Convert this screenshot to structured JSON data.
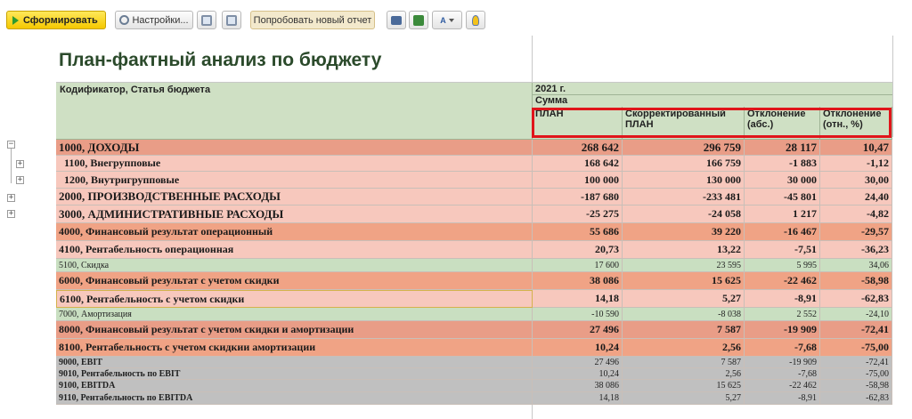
{
  "toolbar": {
    "run_label": "Сформировать",
    "settings_label": "Настройки...",
    "try_new_label": "Попробовать новый отчет",
    "font_button_text": "A"
  },
  "report": {
    "title": "План-фактный анализ по бюджету",
    "header": {
      "row_label": "Кодификатор, Статья бюджета",
      "period": "2021 г.",
      "measure": "Сумма",
      "columns": [
        "ПЛАН",
        "Скорректированный ПЛАН",
        "Отклонение (абс.)",
        "Отклонение (отн., %)"
      ]
    },
    "rows": [
      {
        "name": "1000, ДОХОДЫ",
        "values": [
          "268 642",
          "296 759",
          "28 117",
          "10,47"
        ]
      },
      {
        "name": "1100, Внегрупповые",
        "values": [
          "168 642",
          "166 759",
          "-1 883",
          "-1,12"
        ]
      },
      {
        "name": "1200, Внутригрупповые",
        "values": [
          "100 000",
          "130 000",
          "30 000",
          "30,00"
        ]
      },
      {
        "name": "2000, ПРОИЗВОДСТВЕННЫЕ РАСХОДЫ",
        "values": [
          "-187 680",
          "-233 481",
          "-45 801",
          "24,40"
        ]
      },
      {
        "name": "3000, АДМИНИСТРАТИВНЫЕ РАСХОДЫ",
        "values": [
          "-25 275",
          "-24 058",
          "1 217",
          "-4,82"
        ]
      },
      {
        "name": "4000, Финансовый результат операционный",
        "values": [
          "55 686",
          "39 220",
          "-16 467",
          "-29,57"
        ]
      },
      {
        "name": "4100, Рентабельность операционная",
        "values": [
          "20,73",
          "13,22",
          "-7,51",
          "-36,23"
        ]
      },
      {
        "name": "5100, Скидка",
        "values": [
          "17 600",
          "23 595",
          "5 995",
          "34,06"
        ]
      },
      {
        "name": "6000, Финансовый результат с учетом скидки",
        "values": [
          "38 086",
          "15 625",
          "-22 462",
          "-58,98"
        ]
      },
      {
        "name": "6100, Рентабельность с учетом скидки",
        "values": [
          "14,18",
          "5,27",
          "-8,91",
          "-62,83"
        ]
      },
      {
        "name": "7000, Амортизация",
        "values": [
          "-10 590",
          "-8 038",
          "2 552",
          "-24,10"
        ]
      },
      {
        "name": "8000, Финансовый результат с учетом скидки и амортизации",
        "values": [
          "27 496",
          "7 587",
          "-19 909",
          "-72,41"
        ]
      },
      {
        "name": "8100, Рентабельность с учетом скидкии амортизации",
        "values": [
          "10,24",
          "2,56",
          "-7,68",
          "-75,00"
        ]
      },
      {
        "name": "9000, EBIT",
        "values": [
          "27 496",
          "7 587",
          "-19 909",
          "-72,41"
        ]
      },
      {
        "name": "9010, Рентабельность по EBIT",
        "values": [
          "10,24",
          "2,56",
          "-7,68",
          "-75,00"
        ]
      },
      {
        "name": "9100, EBITDA",
        "values": [
          "38 086",
          "15 625",
          "-22 462",
          "-58,98"
        ]
      },
      {
        "name": "9110, Рентабельность по EBITDA",
        "values": [
          "14,18",
          "5,27",
          "-8,91",
          "-62,83"
        ]
      }
    ]
  },
  "tree": {
    "collapse_symbol": "−",
    "expand_symbol": "+"
  },
  "colors": {
    "header_bg": "#cfe0c4",
    "income_bg": "#e99d87",
    "income_sub_bg": "#f7c8bd",
    "expense_bg": "#f7c8bd",
    "result_bg": "#f0a385",
    "margin_bg": "#f7c8bd",
    "detail_bg": "#c9dfc1",
    "ebit_bg": "#c0c0c0",
    "highlight_border": "#e0151b"
  }
}
